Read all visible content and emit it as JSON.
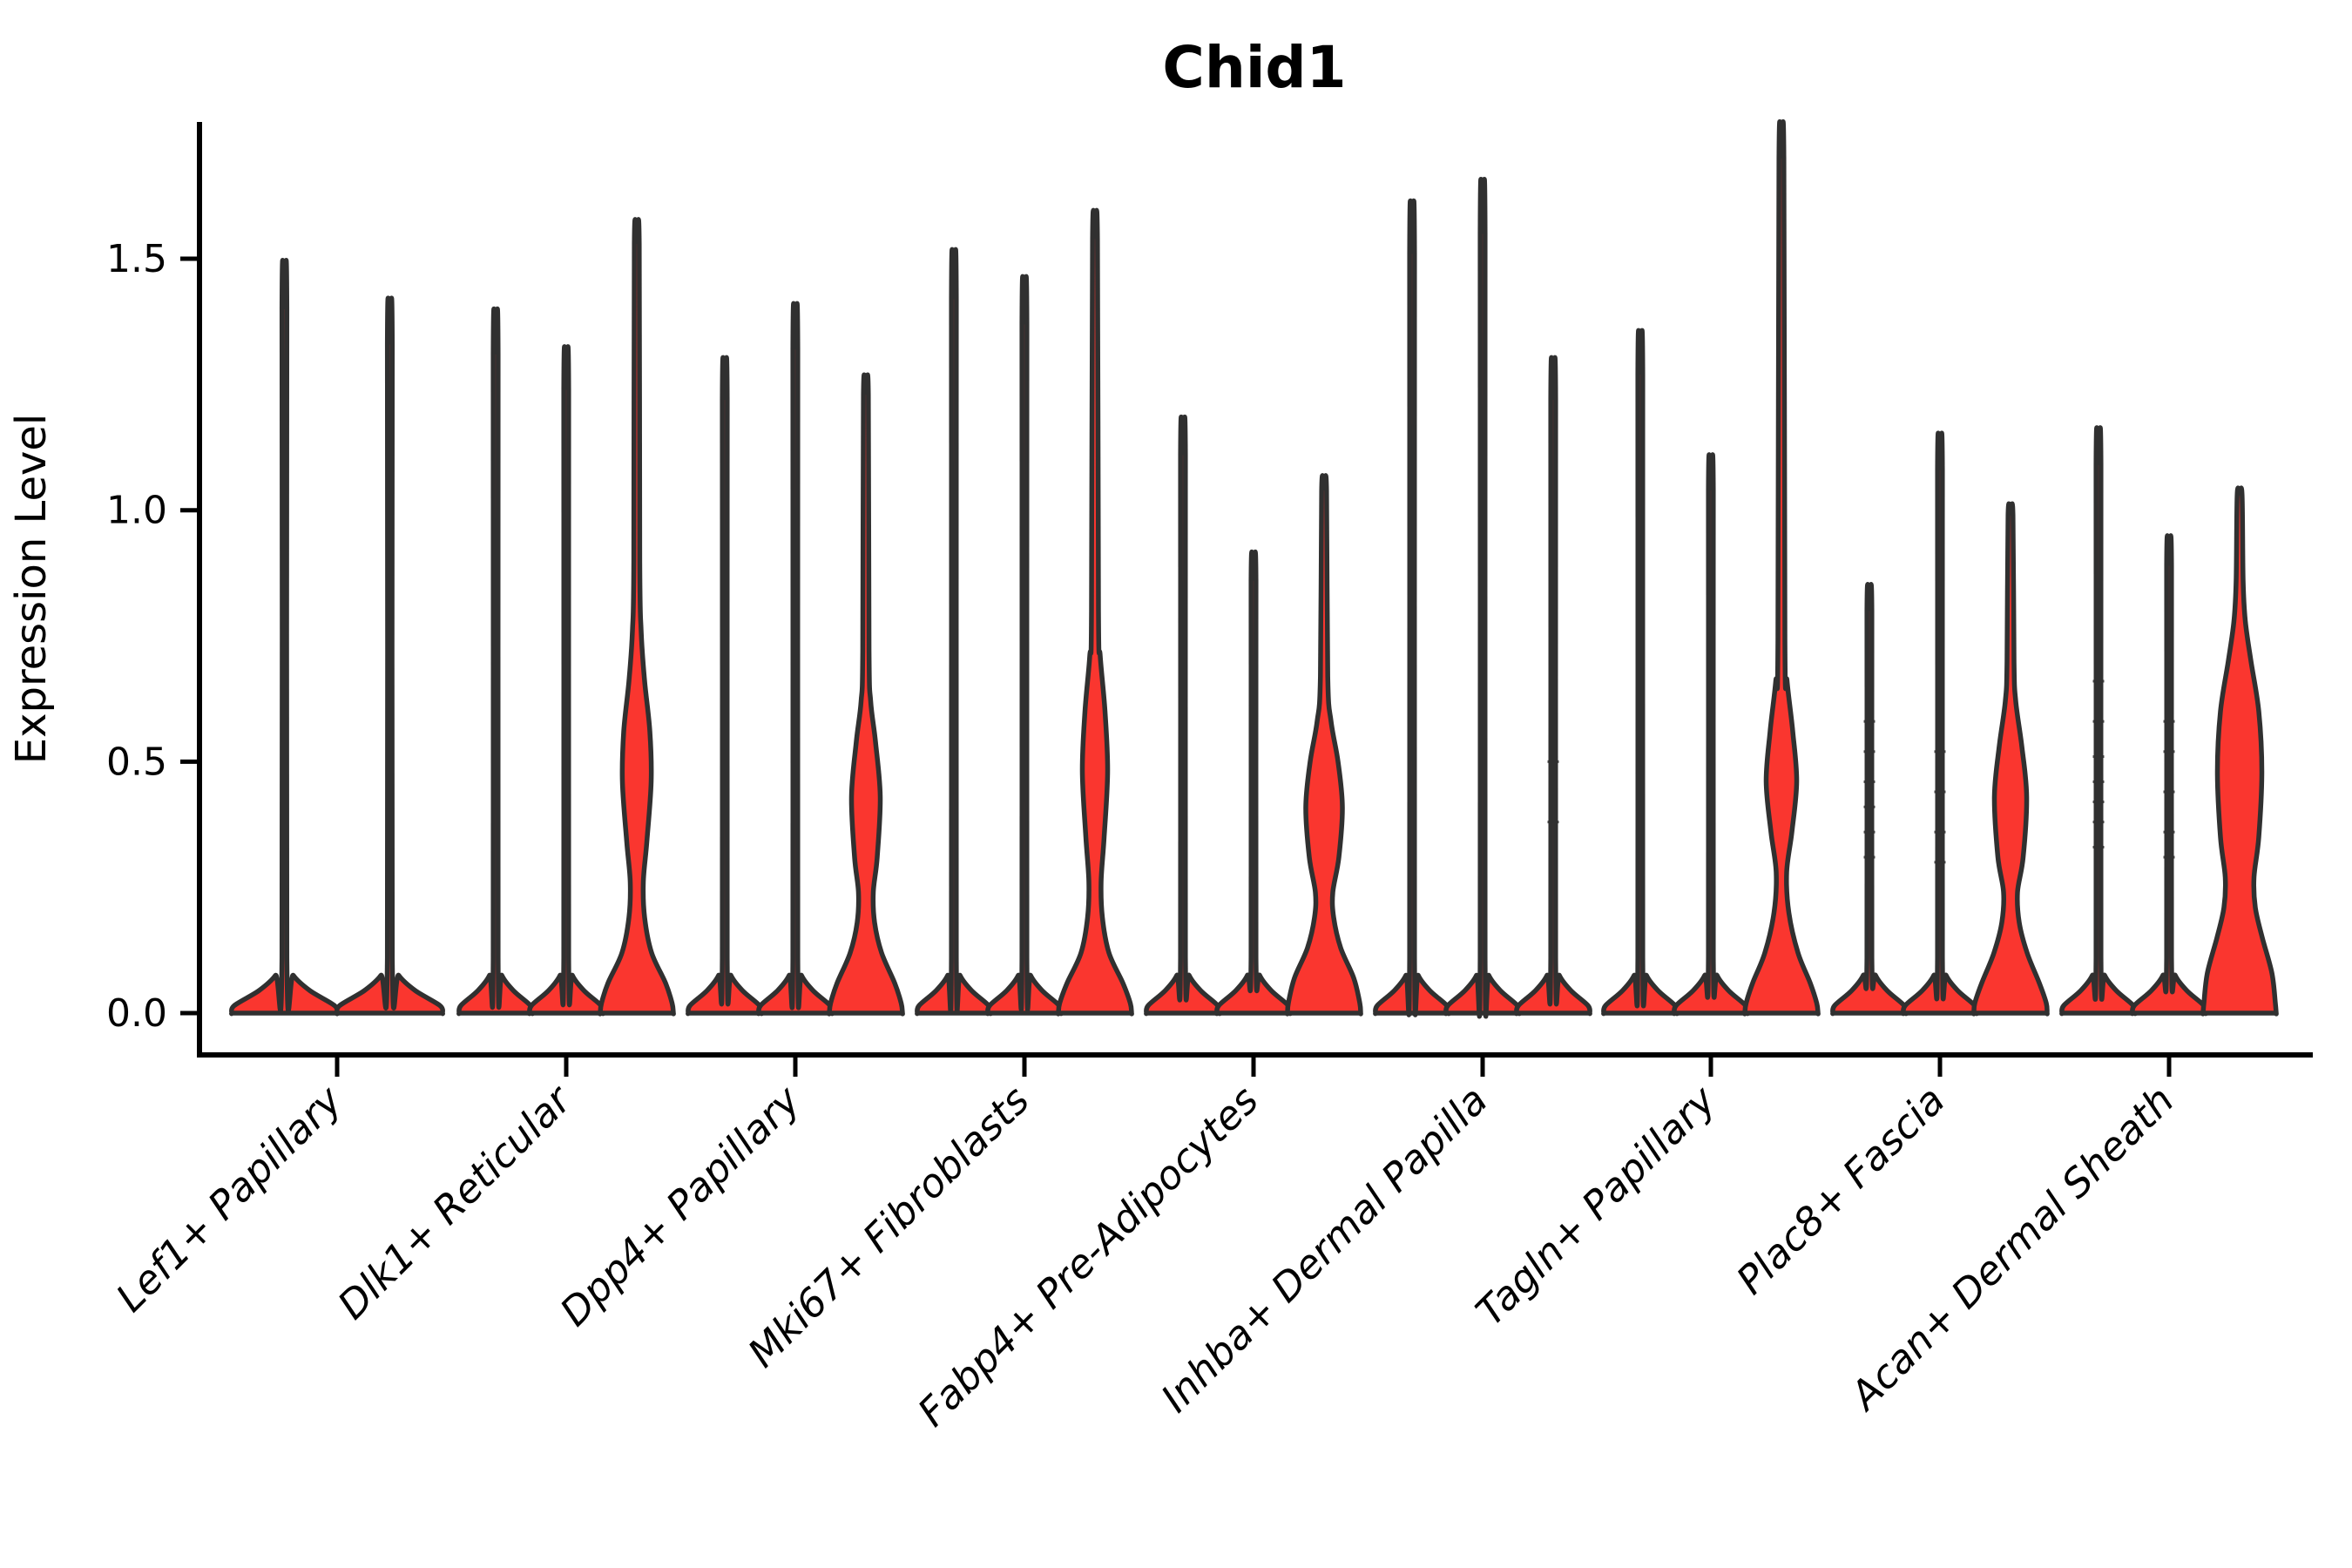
{
  "title": "Chid1",
  "chart_data": {
    "type": "violin",
    "title": "Chid1",
    "ylabel": "Expression Level",
    "xlabel": "",
    "legend": "none",
    "grid": false,
    "y_ticks": {
      "values": [
        0.0,
        0.5,
        1.0,
        1.5
      ],
      "labels": [
        "0.0",
        "0.5",
        "1.0",
        "1.5"
      ]
    },
    "ylim": [
      -0.083,
      1.772
    ],
    "colors": {
      "violin_fill": "#FA362F",
      "violin_stroke": "#303030",
      "axis": "#000000",
      "text": "#000000"
    },
    "groups": [
      {
        "label": "Lef1+ Papillary",
        "violins": [
          {
            "max": 1.4,
            "kind": "spike"
          },
          {
            "max": 1.33,
            "kind": "spike"
          }
        ]
      },
      {
        "label": "Dlk1+ Reticular",
        "violins": [
          {
            "max": 1.31,
            "kind": "spike"
          },
          {
            "max": 1.24,
            "kind": "spike"
          },
          {
            "max": 1.53,
            "kind": "density",
            "profile": [
              [
                0,
                42
              ],
              [
                0.02,
                40.5
              ],
              [
                0.06,
                33
              ],
              [
                0.12,
                17
              ],
              [
                0.19,
                9
              ],
              [
                0.26,
                7.5
              ],
              [
                0.34,
                11.5
              ],
              [
                0.46,
                16.5
              ],
              [
                0.56,
                15
              ],
              [
                0.66,
                9
              ],
              [
                0.76,
                5
              ],
              [
                0.9,
                3.4
              ],
              [
                1.53,
                2.8
              ]
            ]
          }
        ]
      },
      {
        "label": "Dpp4+ Papillary",
        "violins": [
          {
            "max": 1.22,
            "kind": "spike"
          },
          {
            "max": 1.32,
            "kind": "spike"
          },
          {
            "max": 1.23,
            "kind": "density",
            "profile": [
              [
                0,
                42
              ],
              [
                0.02,
                40.5
              ],
              [
                0.06,
                33
              ],
              [
                0.12,
                18
              ],
              [
                0.18,
                10
              ],
              [
                0.24,
                8.5
              ],
              [
                0.31,
                13
              ],
              [
                0.43,
                16.5
              ],
              [
                0.54,
                11
              ],
              [
                0.62,
                5.5
              ],
              [
                0.72,
                3.6
              ],
              [
                1.23,
                2.8
              ]
            ]
          }
        ]
      },
      {
        "label": "Mki67+ Fibroblasts",
        "violins": [
          {
            "max": 1.42,
            "kind": "spike"
          },
          {
            "max": 1.37,
            "kind": "spike"
          },
          {
            "max": 1.54,
            "kind": "density",
            "profile": [
              [
                0,
                42
              ],
              [
                0.02,
                40.5
              ],
              [
                0.06,
                32
              ],
              [
                0.12,
                16
              ],
              [
                0.19,
                8.5
              ],
              [
                0.26,
                7
              ],
              [
                0.35,
                10.5
              ],
              [
                0.48,
                14.5
              ],
              [
                0.6,
                11.5
              ],
              [
                0.71,
                6
              ],
              [
                0.8,
                4
              ],
              [
                1.54,
                2.8
              ]
            ]
          }
        ]
      },
      {
        "label": "Fabp4+ Pre-Adipocytes",
        "violins": [
          {
            "max": 1.11,
            "kind": "spike"
          },
          {
            "max": 0.86,
            "kind": "spike"
          },
          {
            "max": 1.04,
            "kind": "density",
            "profile": [
              [
                0,
                42
              ],
              [
                0.02,
                41
              ],
              [
                0.07,
                34
              ],
              [
                0.13,
                19
              ],
              [
                0.19,
                11
              ],
              [
                0.24,
                10
              ],
              [
                0.31,
                17
              ],
              [
                0.41,
                21
              ],
              [
                0.5,
                16
              ],
              [
                0.58,
                8
              ],
              [
                0.67,
                4.2
              ],
              [
                1.04,
                2.8
              ]
            ]
          }
        ]
      },
      {
        "label": "Inhba+ Dermal Papilla",
        "violins": [
          {
            "max": 1.51,
            "kind": "spike"
          },
          {
            "max": 1.55,
            "kind": "spike"
          },
          {
            "max": 1.22,
            "kind": "spike",
            "marks": [
              0.38,
              0.5
            ]
          }
        ]
      },
      {
        "label": "Tagln+ Papillary",
        "violins": [
          {
            "max": 1.27,
            "kind": "spike"
          },
          {
            "max": 1.04,
            "kind": "spike"
          },
          {
            "max": 1.7,
            "kind": "density",
            "profile": [
              [
                0,
                42
              ],
              [
                0.02,
                40.5
              ],
              [
                0.06,
                33
              ],
              [
                0.12,
                19
              ],
              [
                0.2,
                8.5
              ],
              [
                0.28,
                6
              ],
              [
                0.36,
                12
              ],
              [
                0.46,
                17.5
              ],
              [
                0.56,
                13
              ],
              [
                0.66,
                6.5
              ],
              [
                0.74,
                4
              ],
              [
                1.7,
                2.8
              ]
            ]
          }
        ]
      },
      {
        "label": "Plac8+ Fascia",
        "violins": [
          {
            "max": 0.8,
            "kind": "spike",
            "marks": [
              0.31,
              0.36,
              0.41,
              0.46,
              0.52,
              0.58
            ]
          },
          {
            "max": 1.08,
            "kind": "spike",
            "marks": [
              0.3,
              0.36,
              0.44,
              0.52
            ]
          },
          {
            "max": 0.99,
            "kind": "density",
            "profile": [
              [
                0,
                42
              ],
              [
                0.02,
                41
              ],
              [
                0.06,
                33
              ],
              [
                0.12,
                19
              ],
              [
                0.18,
                10
              ],
              [
                0.24,
                8
              ],
              [
                0.31,
                14.5
              ],
              [
                0.43,
                18.5
              ],
              [
                0.53,
                13
              ],
              [
                0.62,
                6
              ],
              [
                0.7,
                4
              ],
              [
                0.99,
                2.8
              ]
            ]
          }
        ]
      },
      {
        "label": "Acan+ Dermal Sheath",
        "violins": [
          {
            "max": 1.09,
            "kind": "spike",
            "marks": [
              0.33,
              0.38,
              0.42,
              0.46,
              0.51,
              0.58,
              0.66
            ]
          },
          {
            "max": 0.89,
            "kind": "spike",
            "marks": [
              0.31,
              0.36,
              0.44,
              0.52,
              0.58
            ]
          },
          {
            "max": 1.03,
            "kind": "density",
            "profile": [
              [
                0,
                42
              ],
              [
                0.02,
                41
              ],
              [
                0.08,
                37
              ],
              [
                0.15,
                26
              ],
              [
                0.21,
                18
              ],
              [
                0.27,
                16.5
              ],
              [
                0.35,
                22
              ],
              [
                0.48,
                25.5
              ],
              [
                0.6,
                22
              ],
              [
                0.7,
                13
              ],
              [
                0.78,
                6.5
              ],
              [
                0.86,
                4
              ],
              [
                1.03,
                2.8
              ]
            ]
          }
        ]
      }
    ]
  }
}
